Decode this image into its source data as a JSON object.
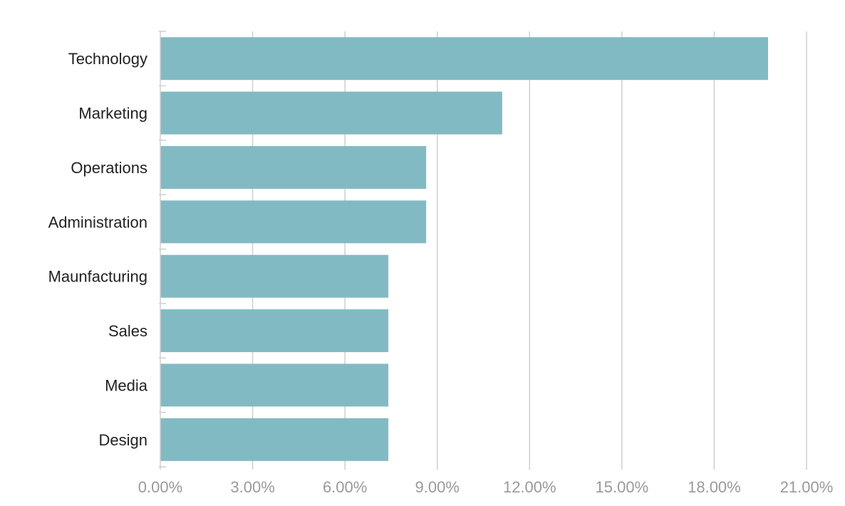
{
  "chart_data": {
    "type": "bar",
    "orientation": "horizontal",
    "categories": [
      "Technology",
      "Marketing",
      "Operations",
      "Administration",
      "Maunfacturing",
      "Sales",
      "Media",
      "Design"
    ],
    "values": [
      19.75,
      11.11,
      8.64,
      8.64,
      7.41,
      7.41,
      7.41,
      7.41
    ],
    "value_unit": "%",
    "xlim": [
      0,
      21
    ],
    "xticks": [
      0,
      3,
      6,
      9,
      12,
      15,
      18,
      21
    ],
    "xtick_labels": [
      "0.00%",
      "3.00%",
      "6.00%",
      "9.00%",
      "12.00%",
      "15.00%",
      "18.00%",
      "21.00%"
    ],
    "grid": "vertical",
    "legend": "none",
    "bar_color": "#82bac3"
  }
}
